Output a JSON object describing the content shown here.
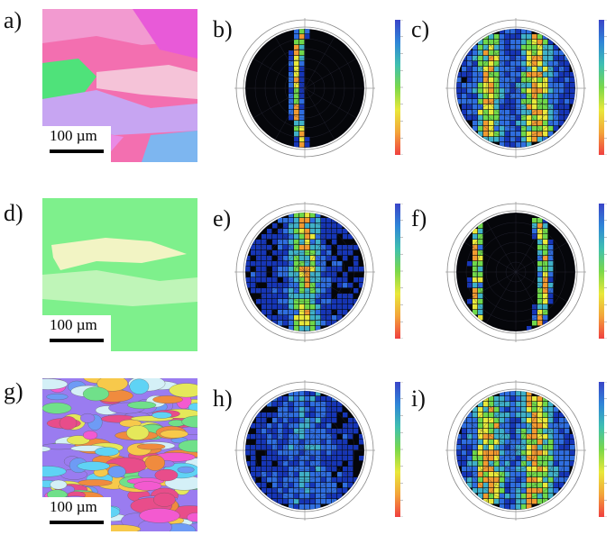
{
  "panels": [
    {
      "label": "a)",
      "type": "ebsd-map",
      "scale": "100 µm",
      "colors": [
        "#f36fb0",
        "#e85ad8",
        "#f29ad0",
        "#4fe27a",
        "#c7a5f2",
        "#7db6f0",
        "#f5c3d8"
      ]
    },
    {
      "label": "b)",
      "type": "pole-figure"
    },
    {
      "label": "c)",
      "type": "pole-figure"
    },
    {
      "label": "d)",
      "type": "ebsd-map",
      "scale": "100 µm",
      "colors": [
        "#7ef08c",
        "#f2f4c4",
        "#bff5b8"
      ]
    },
    {
      "label": "e)",
      "type": "pole-figure"
    },
    {
      "label": "f)",
      "type": "pole-figure"
    },
    {
      "label": "g)",
      "type": "ebsd-map",
      "scale": "100 µm",
      "colors": [
        "#e84d8a",
        "#f7c94b",
        "#5fd3f5",
        "#9a7cf0",
        "#70e08a",
        "#f08b3e",
        "#f35ad0",
        "#6e9bf5",
        "#e5e85a",
        "#d4f0f7"
      ]
    },
    {
      "label": "h)",
      "type": "pole-figure"
    },
    {
      "label": "i)",
      "type": "pole-figure"
    }
  ],
  "colorbar_gradient": [
    "#3a45c8",
    "#2f86d8",
    "#3fc0b0",
    "#7ad84a",
    "#e9e83a",
    "#f3a43a",
    "#f04040"
  ]
}
